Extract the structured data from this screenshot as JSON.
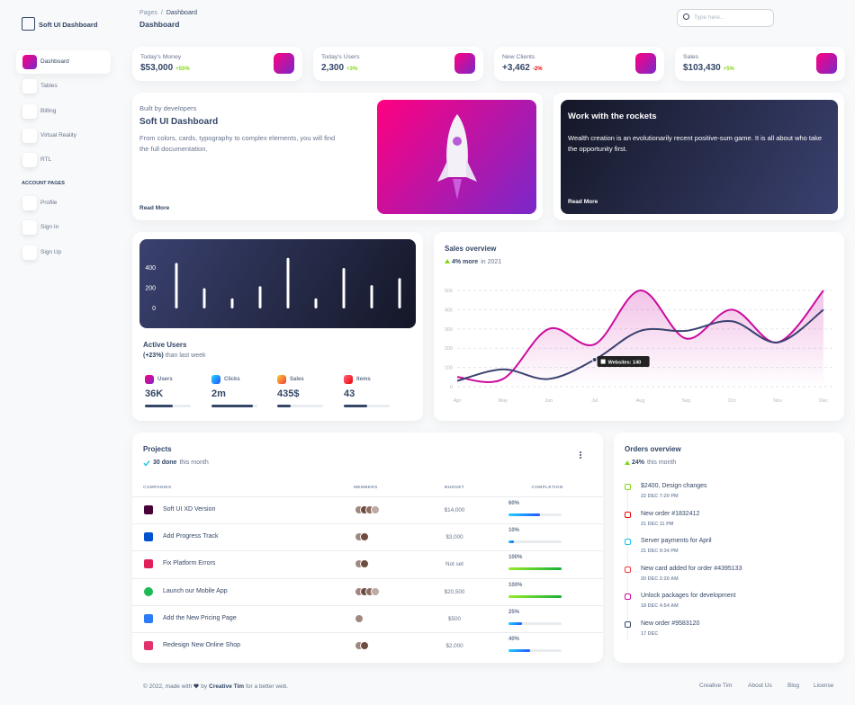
{
  "sidebar": {
    "brand": "Soft UI Dashboard",
    "nav": [
      "Dashboard",
      "Tables",
      "Billing",
      "Virtual Reality",
      "RTL"
    ],
    "section": "ACCOUNT PAGES",
    "account": [
      "Profile",
      "Sign In",
      "Sign Up"
    ]
  },
  "header": {
    "breadcrumb": [
      "Pages",
      "/",
      "Dashboard"
    ],
    "title": "Dashboard",
    "search": "Type here..."
  },
  "stats": [
    {
      "label": "Today's Money",
      "value": "$53,000",
      "change": "+55%"
    },
    {
      "label": "Today's Users",
      "value": "2,300",
      "change": "+3%"
    },
    {
      "label": "New Clients",
      "value": "+3,462",
      "change": "-2%"
    },
    {
      "label": "Sales",
      "value": "$103,430",
      "change": "+5%"
    }
  ],
  "intro": {
    "kicker": "Built by developers",
    "title": "Soft UI Dashboard",
    "text": "From colors, cards, typography to complex elements, you will find the full documentation.",
    "link": "Read More"
  },
  "rockets": {
    "title": "Work with the rockets",
    "text": "Wealth creation is an evolutionarily recent positive-sum game. It is all about who take the opportunity first.",
    "link": "Read More"
  },
  "chart_data": [
    {
      "type": "bar",
      "values": [
        450,
        200,
        100,
        220,
        500,
        100,
        400,
        230,
        300
      ],
      "ylim": [
        0,
        500
      ],
      "yticks": [
        0,
        200,
        400
      ],
      "grid": false,
      "color": "#ffffff"
    },
    {
      "type": "line",
      "title": "Sales overview",
      "subtitle": {
        "change": "4% more",
        "text": "in 2021"
      },
      "categories": [
        "Apr",
        "May",
        "Jun",
        "Jul",
        "Aug",
        "Sep",
        "Oct",
        "Nov",
        "Dec"
      ],
      "series": [
        {
          "color": "#cb0c9f",
          "values": [
            50,
            40,
            300,
            220,
            500,
            250,
            400,
            230,
            500
          ]
        },
        {
          "color": "#3a416f",
          "values": [
            30,
            90,
            40,
            140,
            290,
            290,
            340,
            230,
            400
          ]
        }
      ],
      "ylim": [
        0,
        500
      ],
      "yticks": [
        0,
        100,
        200,
        300,
        400,
        500
      ],
      "grid": true,
      "tooltip": "Websites: 140"
    }
  ],
  "active_users": {
    "title": "Active Users",
    "change": "(+23%)",
    "note": "than last week",
    "items": [
      {
        "label": "Users",
        "value": "36K",
        "progress": 60
      },
      {
        "label": "Clicks",
        "value": "2m",
        "progress": 90
      },
      {
        "label": "Sales",
        "value": "435$",
        "progress": 30
      },
      {
        "label": "Items",
        "value": "43",
        "progress": 50
      }
    ]
  },
  "projects": {
    "title": "Projects",
    "done": "30 done",
    "note": "this month",
    "headers": [
      "COMPANIES",
      "MEMBERS",
      "BUDGET",
      "COMPLETION"
    ],
    "rows": [
      {
        "company": "Soft UI XD Version",
        "members": 4,
        "budget": "$14,000",
        "completion": {
          "value": 60,
          "label": "60%"
        }
      },
      {
        "company": "Add Progress Track",
        "members": 2,
        "budget": "$3,000",
        "completion": {
          "value": 10,
          "label": "10%"
        }
      },
      {
        "company": "Fix Platform Errors",
        "members": 2,
        "budget": "Not set",
        "completion": {
          "value": 100,
          "label": "100%"
        }
      },
      {
        "company": "Launch our Mobile App",
        "members": 4,
        "budget": "$20,500",
        "completion": {
          "value": 100,
          "label": "100%"
        }
      },
      {
        "company": "Add the New Pricing Page",
        "members": 1,
        "budget": "$500",
        "completion": {
          "value": 25,
          "label": "25%"
        }
      },
      {
        "company": "Redesign New Online Shop",
        "members": 2,
        "budget": "$2,000",
        "completion": {
          "value": 40,
          "label": "40%"
        }
      }
    ]
  },
  "orders": {
    "title": "Orders overview",
    "change": "24%",
    "note": "this month",
    "items": [
      {
        "title": "$2400, Design changes",
        "time": "22 DEC 7:20 PM"
      },
      {
        "title": "New order #1832412",
        "time": "21 DEC 11 PM"
      },
      {
        "title": "Server payments for April",
        "time": "21 DEC 9:34 PM"
      },
      {
        "title": "New card added for order #4395133",
        "time": "20 DEC 2:20 AM"
      },
      {
        "title": "Unlock packages for development",
        "time": "18 DEC 4:54 AM"
      },
      {
        "title": "New order #9583120",
        "time": "17 DEC"
      }
    ]
  },
  "footer": {
    "text": [
      "© 2022, made with",
      "by",
      "Creative Tim",
      "for a better web."
    ],
    "links": [
      "Creative Tim",
      "About Us",
      "Blog",
      "License"
    ]
  }
}
